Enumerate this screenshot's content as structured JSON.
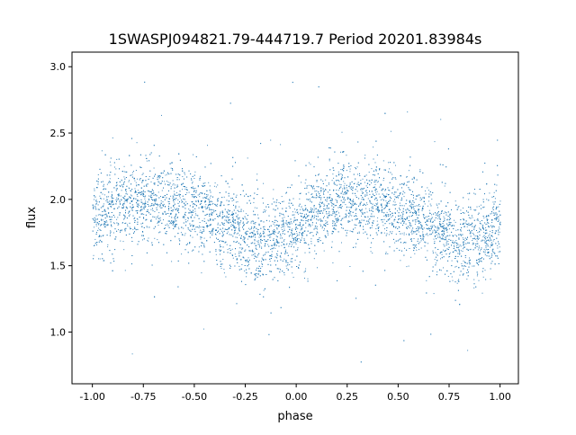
{
  "chart_data": {
    "type": "scatter",
    "title": "1SWASPJ094821.79-444719.7 Period 20201.83984s",
    "xlabel": "phase",
    "ylabel": "flux",
    "xlim": [
      -1.1,
      1.09
    ],
    "ylim": [
      0.61,
      3.11
    ],
    "xticks": [
      "-1.00",
      "-0.75",
      "-0.50",
      "-0.25",
      "0.00",
      "0.25",
      "0.50",
      "0.75",
      "1.00"
    ],
    "xtick_values": [
      -1.0,
      -0.75,
      -0.5,
      -0.25,
      0.0,
      0.25,
      0.5,
      0.75,
      1.0
    ],
    "yticks": [
      "1.0",
      "1.5",
      "2.0",
      "2.5",
      "3.0"
    ],
    "ytick_values": [
      1.0,
      1.5,
      2.0,
      2.5,
      3.0
    ],
    "grid": false,
    "marker_color": "#1f77b4",
    "phase_range": [
      -1.0,
      1.0
    ],
    "binned_trend": {
      "phase": [
        -1.0,
        -0.9,
        -0.75,
        -0.6,
        -0.5,
        -0.4,
        -0.25,
        -0.15,
        -0.05,
        0.0,
        0.1,
        0.25,
        0.4,
        0.5,
        0.6,
        0.75,
        0.85,
        0.95,
        1.0
      ],
      "flux": [
        1.85,
        1.92,
        2.0,
        1.97,
        1.93,
        1.85,
        1.72,
        1.67,
        1.74,
        1.8,
        1.9,
        2.0,
        1.97,
        1.93,
        1.85,
        1.72,
        1.67,
        1.74,
        1.8
      ]
    },
    "scatter_std": 0.15,
    "approx_point_count": 7000
  }
}
